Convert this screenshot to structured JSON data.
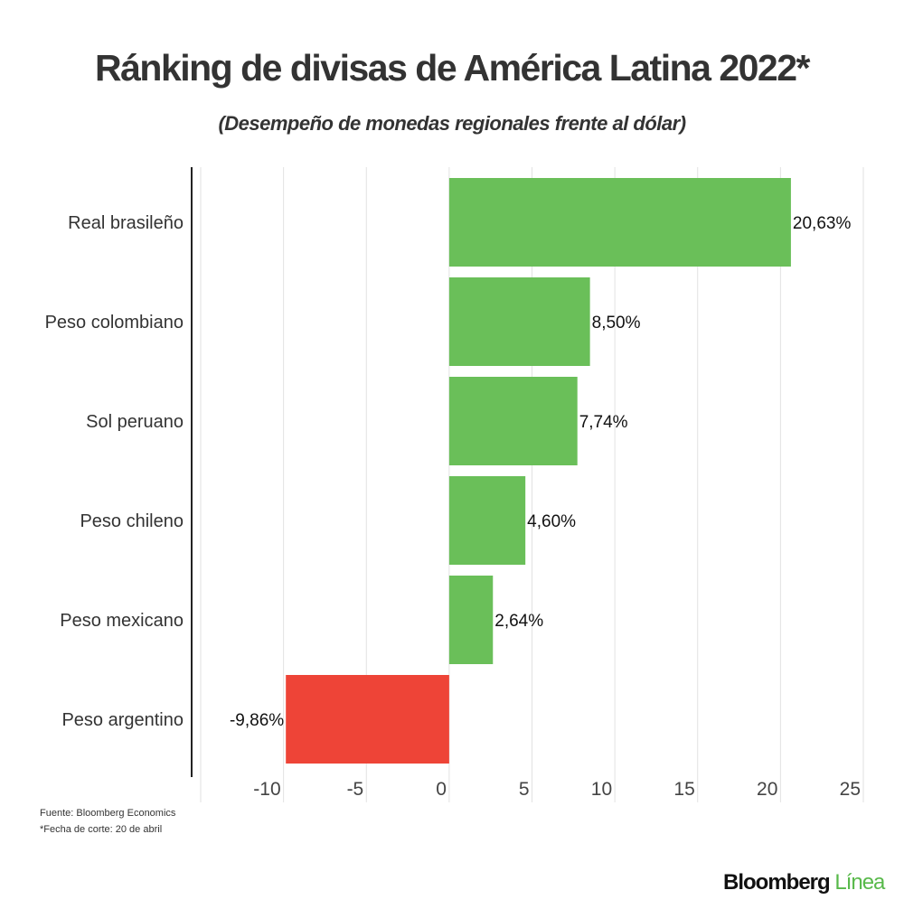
{
  "chart_data": {
    "type": "bar",
    "orientation": "horizontal",
    "title": "Ránking de divisas de América Latina 2022*",
    "subtitle": "(Desempeño de monedas regionales frente al dólar)",
    "categories": [
      "Real brasileño",
      "Peso colombiano",
      "Sol peruano",
      "Peso chileno",
      "Peso mexicano",
      "Peso argentino"
    ],
    "values": [
      20.63,
      8.5,
      7.74,
      4.6,
      2.64,
      -9.86
    ],
    "data_labels": [
      "20,63%",
      "8,50%",
      "7,74%",
      "4,60%",
      "2,64%",
      "-9,86%"
    ],
    "xlim": [
      -15,
      25
    ],
    "xticks": [
      -10,
      -5,
      0,
      5,
      10,
      15,
      20,
      25
    ],
    "xtick_labels": [
      "-10",
      "-5",
      "0",
      "5",
      "10",
      "15",
      "20",
      "25"
    ],
    "grid": "vertical",
    "colors": {
      "positive": "#6abf59",
      "negative": "#ee4437"
    }
  },
  "footer": {
    "source": "Fuente: Bloomberg Economics",
    "note": "*Fecha de corte: 20 de abril"
  },
  "logo": {
    "part1": "Bloomberg",
    "part2": "Línea"
  }
}
